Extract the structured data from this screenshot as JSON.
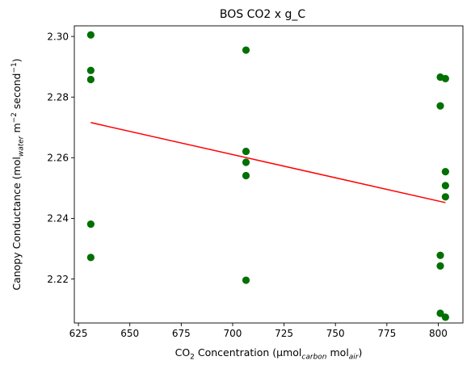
{
  "chart_data": {
    "type": "scatter",
    "title": "BOS CO2 x g_C",
    "xlabel": {
      "parts": [
        {
          "t": "CO"
        },
        {
          "t": "2",
          "s": "sub"
        },
        {
          "t": " Concentration (µmol"
        },
        {
          "t": "carbon",
          "s": "sub-italic"
        },
        {
          "t": " mol"
        },
        {
          "t": "air",
          "s": "sub-italic"
        },
        {
          "t": ")"
        }
      ]
    },
    "ylabel": {
      "parts": [
        {
          "t": "Canopy Conductance (mol"
        },
        {
          "t": "water",
          "s": "sub-italic"
        },
        {
          "t": " m"
        },
        {
          "t": "−2",
          "s": "sup"
        },
        {
          "t": " second"
        },
        {
          "t": "−1",
          "s": "sup"
        },
        {
          "t": ")"
        }
      ]
    },
    "xlim": [
      623,
      812
    ],
    "ylim": [
      2.2055,
      2.3035
    ],
    "xticks": [
      625,
      650,
      675,
      700,
      725,
      750,
      775,
      800
    ],
    "xtick_labels": [
      "625",
      "650",
      "675",
      "700",
      "725",
      "750",
      "775",
      "800"
    ],
    "yticks": [
      2.22,
      2.24,
      2.26,
      2.28,
      2.3
    ],
    "ytick_labels": [
      "2.22",
      "2.24",
      "2.26",
      "2.28",
      "2.30"
    ],
    "grid": false,
    "legend": "none",
    "series": [
      {
        "kind": "points",
        "color": "#007000",
        "points": [
          [
            631,
            2.3005
          ],
          [
            631,
            2.2888
          ],
          [
            631,
            2.2858
          ],
          [
            631,
            2.2381
          ],
          [
            631,
            2.2271
          ],
          [
            706.5,
            2.2955
          ],
          [
            706.5,
            2.2621
          ],
          [
            706.5,
            2.2585
          ],
          [
            706.5,
            2.2541
          ],
          [
            706.5,
            2.2196
          ],
          [
            801,
            2.2866
          ],
          [
            801,
            2.2771
          ],
          [
            801,
            2.2278
          ],
          [
            801,
            2.2243
          ],
          [
            801,
            2.2087
          ],
          [
            803.5,
            2.2861
          ],
          [
            803.5,
            2.2554
          ],
          [
            803.5,
            2.2508
          ],
          [
            803.5,
            2.2471
          ],
          [
            803.5,
            2.2074
          ]
        ]
      },
      {
        "kind": "fit-line",
        "color": "#ff0000",
        "points": [
          [
            631,
            2.2716
          ],
          [
            803.5,
            2.2452
          ]
        ]
      }
    ]
  }
}
